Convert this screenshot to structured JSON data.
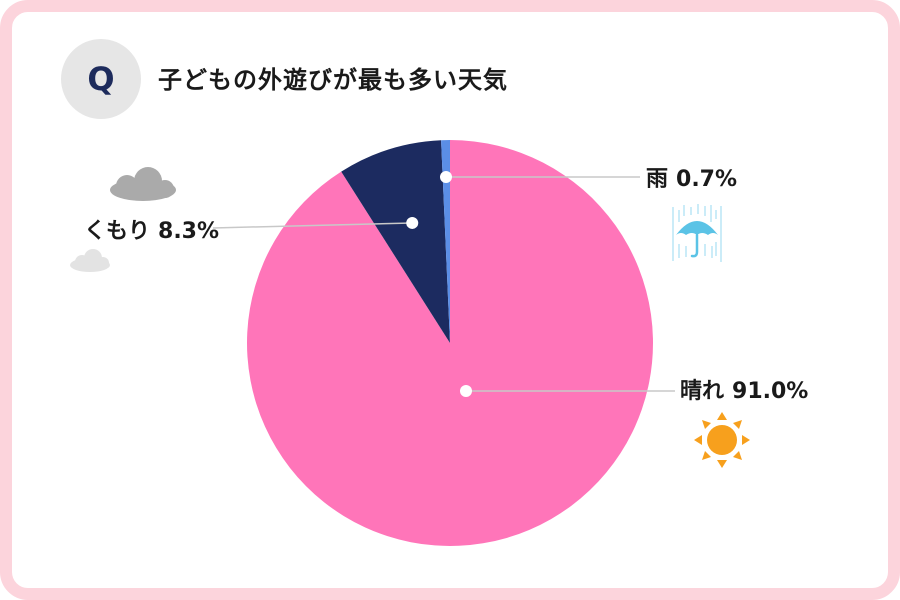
{
  "question": {
    "badge": "Q",
    "title": "子どもの外遊びが最も多い天気"
  },
  "chart_data": {
    "type": "pie",
    "title": "子どもの外遊びが最も多い天気",
    "slices": [
      {
        "label": "晴れ",
        "value": 91.0,
        "display": "91.0%",
        "color": "#ff75b9",
        "icon": "sun-icon"
      },
      {
        "label": "くもり",
        "value": 8.3,
        "display": "8.3%",
        "color": "#1c2b60",
        "icon": "cloud-icon"
      },
      {
        "label": "雨",
        "value": 0.7,
        "display": "0.7%",
        "color": "#5b8ee6",
        "icon": "umbrella-rain-icon"
      }
    ]
  },
  "colors": {
    "border": "#fcd4dc",
    "badge_bg": "#e6e6e6",
    "badge_text": "#1d2b5c",
    "leader": "#c8c8c8",
    "sun": "#f7a01d",
    "cloud": "#aaaaaa",
    "umbrella": "#5bc3e6"
  }
}
